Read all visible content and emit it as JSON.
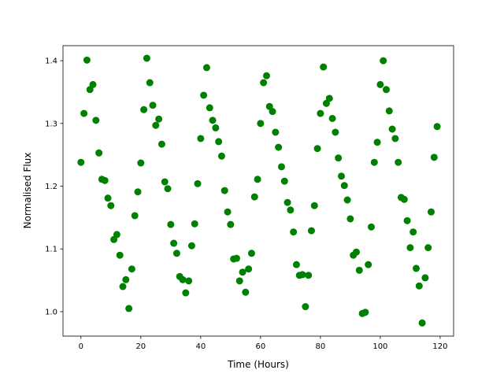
{
  "chart_data": {
    "type": "scatter",
    "title": "",
    "xlabel": "Time (Hours)",
    "ylabel": "Normalised Flux",
    "xlim": [
      -6,
      124.5
    ],
    "ylim": [
      0.961,
      1.424
    ],
    "xticks": [
      0,
      20,
      40,
      60,
      80,
      100,
      120
    ],
    "yticks": [
      1.0,
      1.1,
      1.2,
      1.3,
      1.4
    ],
    "xtick_labels": [
      "0",
      "20",
      "40",
      "60",
      "80",
      "100",
      "120"
    ],
    "ytick_labels": [
      "1.0",
      "1.1",
      "1.2",
      "1.3",
      "1.4"
    ],
    "grid": false,
    "marker_color": "#008000",
    "series": [
      {
        "x": [
          0,
          1,
          2,
          3,
          4,
          5,
          6,
          7,
          8,
          9,
          10,
          11,
          12,
          13,
          14,
          15,
          16,
          17,
          18,
          19,
          20,
          21,
          22,
          23,
          24,
          25,
          26,
          27,
          28,
          29,
          30,
          31,
          32,
          33,
          34,
          35,
          36,
          37,
          38,
          39,
          40,
          41,
          42,
          43,
          44,
          45,
          46,
          47,
          48,
          49,
          50,
          51,
          52,
          53,
          54,
          55,
          56,
          57,
          58,
          59,
          60,
          61,
          62,
          63,
          64,
          65,
          66,
          67,
          68,
          69,
          70,
          71,
          72,
          73,
          74,
          75,
          76,
          77,
          78,
          79,
          80,
          81,
          82,
          83,
          84,
          85,
          86,
          87,
          88,
          89,
          90,
          91,
          92,
          93,
          94,
          95,
          96,
          97,
          98,
          99,
          100,
          101,
          102,
          103,
          104,
          105,
          106,
          107,
          108,
          109,
          110,
          111,
          112,
          113,
          114,
          115,
          116,
          117,
          118,
          119
        ],
        "y": [
          1.238,
          1.316,
          1.401,
          1.354,
          1.362,
          1.305,
          1.253,
          1.211,
          1.209,
          1.181,
          1.169,
          1.115,
          1.123,
          1.09,
          1.04,
          1.051,
          1.005,
          1.068,
          1.153,
          1.191,
          1.237,
          1.322,
          1.404,
          1.365,
          1.329,
          1.297,
          1.307,
          1.267,
          1.207,
          1.196,
          1.139,
          1.109,
          1.093,
          1.056,
          1.051,
          1.03,
          1.049,
          1.105,
          1.14,
          1.204,
          1.276,
          1.345,
          1.389,
          1.325,
          1.305,
          1.293,
          1.271,
          1.248,
          1.193,
          1.159,
          1.139,
          1.084,
          1.085,
          1.049,
          1.063,
          1.031,
          1.068,
          1.093,
          1.183,
          1.211,
          1.3,
          1.365,
          1.376,
          1.327,
          1.319,
          1.286,
          1.262,
          1.231,
          1.208,
          1.174,
          1.162,
          1.127,
          1.075,
          1.058,
          1.059,
          1.008,
          1.058,
          1.129,
          1.169,
          1.26,
          1.316,
          1.39,
          1.332,
          1.34,
          1.308,
          1.286,
          1.245,
          1.216,
          1.201,
          1.178,
          1.148,
          1.09,
          1.095,
          1.066,
          0.997,
          0.999,
          1.075,
          1.135,
          1.238,
          1.27,
          1.362,
          1.4,
          1.354,
          1.32,
          1.291,
          1.276,
          1.238,
          1.182,
          1.179,
          1.145,
          1.102,
          1.127,
          1.069,
          1.041,
          0.982,
          1.054,
          1.102,
          1.159,
          1.246,
          1.295
        ]
      }
    ]
  }
}
